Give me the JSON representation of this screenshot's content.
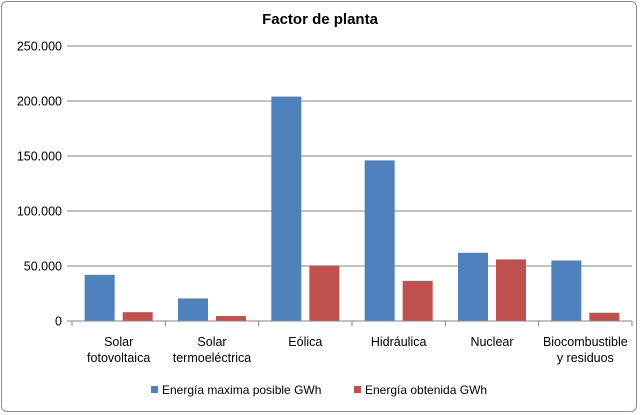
{
  "chart_data": {
    "type": "bar",
    "title": "Factor de planta",
    "xlabel": "",
    "ylabel": "",
    "ylim": [
      0,
      250000
    ],
    "ytick_values": [
      0,
      50000,
      100000,
      150000,
      200000,
      250000
    ],
    "ytick_labels": [
      "0",
      "50.000",
      "100.000",
      "150.000",
      "200.000",
      "250.000"
    ],
    "grid": true,
    "legend_position": "bottom",
    "categories": [
      [
        "Solar",
        "fotovoltaica"
      ],
      [
        "Solar",
        "termoeléctrica"
      ],
      [
        "Eólica"
      ],
      [
        "Hidráulica"
      ],
      [
        "Nuclear"
      ],
      [
        "Biocombustible",
        "y residuos"
      ]
    ],
    "series": [
      {
        "name": "Energía maxima posible GWh",
        "color": "#4f81bd",
        "values": [
          42000,
          20500,
          204000,
          146000,
          62000,
          55000
        ]
      },
      {
        "name": "Energía obtenida GWh",
        "color": "#c0504d",
        "values": [
          8000,
          4500,
          50500,
          36500,
          56000,
          7500
        ]
      }
    ]
  }
}
